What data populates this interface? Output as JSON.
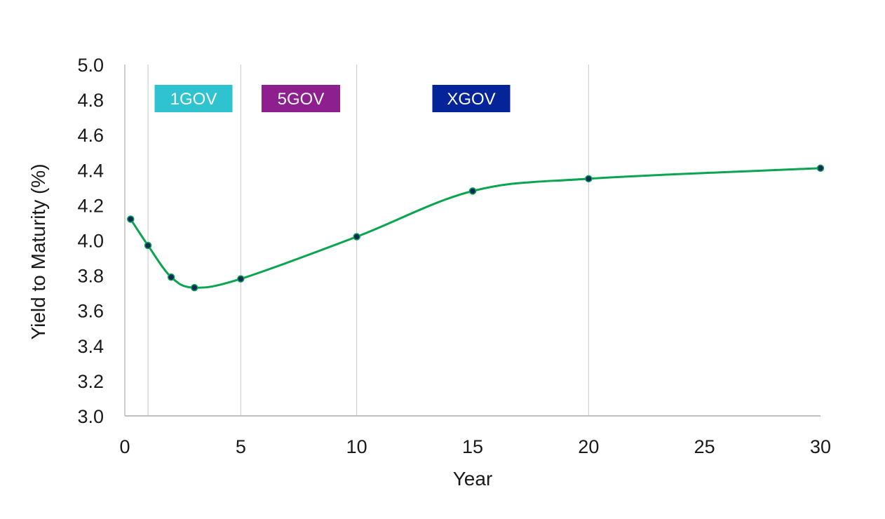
{
  "chart_data": {
    "type": "line",
    "xlabel": "Year",
    "ylabel": "Yield to Maturity (%)",
    "xlim": [
      0,
      30
    ],
    "ylim": [
      3.0,
      5.0
    ],
    "x_ticks": [
      "0",
      "5",
      "10",
      "15",
      "20",
      "25",
      "30"
    ],
    "y_ticks": [
      "3.0",
      "3.2",
      "3.4",
      "3.6",
      "3.8",
      "4.0",
      "4.2",
      "4.4",
      "4.6",
      "4.8",
      "5.0"
    ],
    "grid": "vertical lines at x = 1, 5, 10, 20",
    "gridlines_x": [
      1,
      5,
      10,
      20
    ],
    "series": [
      {
        "color": "#0aa64f",
        "marker_color": "#0b2a5a",
        "points": [
          {
            "x": 0.25,
            "y": 4.12
          },
          {
            "x": 1,
            "y": 3.97
          },
          {
            "x": 2,
            "y": 3.79
          },
          {
            "x": 3,
            "y": 3.73
          },
          {
            "x": 5,
            "y": 3.78
          },
          {
            "x": 10,
            "y": 4.02
          },
          {
            "x": 15,
            "y": 4.28
          },
          {
            "x": 20,
            "y": 4.35
          },
          {
            "x": 30,
            "y": 4.41
          }
        ]
      }
    ],
    "annotations": [
      {
        "text": "1GOV",
        "color": "#2ec3cf"
      },
      {
        "text": "5GOV",
        "color": "#8e1f8f"
      },
      {
        "text": "XGOV",
        "color": "#05249a"
      }
    ]
  }
}
